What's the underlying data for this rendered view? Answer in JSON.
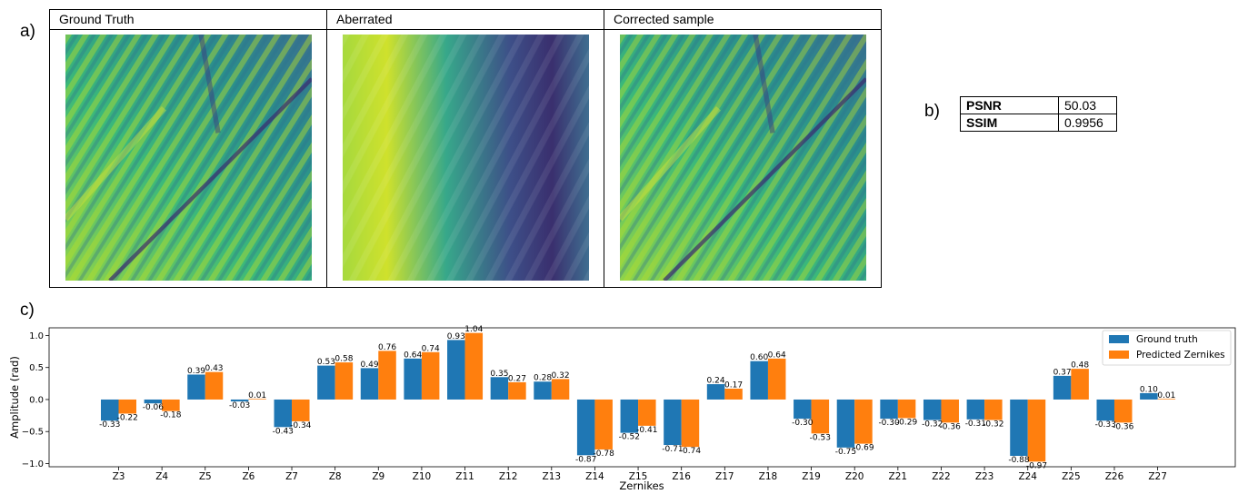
{
  "panels": {
    "a": "a)",
    "b": "b)",
    "c": "c)"
  },
  "images": [
    {
      "title": "Ground Truth"
    },
    {
      "title": "Aberrated"
    },
    {
      "title": "Corrected sample"
    }
  ],
  "metrics": [
    {
      "name": "PSNR",
      "value": "50.03"
    },
    {
      "name": "SSIM",
      "value": "0.9956"
    }
  ],
  "colors": {
    "ground_truth": "#1f77b4",
    "predicted": "#ff7f0e"
  },
  "chart_data": {
    "type": "bar",
    "xlabel": "Zernikes",
    "ylabel": "Amplitude (rad)",
    "ylim": [
      -1.05,
      1.12
    ],
    "yticks": [
      1.0,
      0.5,
      0.0,
      -0.5,
      -1.0
    ],
    "ytick_labels": [
      "1.0",
      "0.5",
      "0.0",
      "−0.5",
      "−1.0"
    ],
    "legend_position": "top-right",
    "categories": [
      "Z3",
      "Z4",
      "Z5",
      "Z6",
      "Z7",
      "Z8",
      "Z9",
      "Z10",
      "Z11",
      "Z12",
      "Z13",
      "Z14",
      "Z15",
      "Z16",
      "Z17",
      "Z18",
      "Z19",
      "Z20",
      "Z21",
      "Z22",
      "Z23",
      "Z24",
      "Z25",
      "Z26",
      "Z27"
    ],
    "series": [
      {
        "name": "Ground truth",
        "values": [
          -0.33,
          -0.06,
          0.39,
          -0.03,
          -0.43,
          0.53,
          0.49,
          0.64,
          0.93,
          0.35,
          0.28,
          -0.87,
          -0.52,
          -0.71,
          0.24,
          0.6,
          -0.3,
          -0.75,
          -0.3,
          -0.32,
          -0.31,
          -0.88,
          0.37,
          -0.33,
          0.1
        ],
        "labels": [
          "-0.33",
          "-0.06",
          "0.39",
          "-0.03",
          "-0.43",
          "0.53",
          "0.49",
          "0.64",
          "0.93",
          "0.35",
          "0.28",
          "-0.87",
          "-0.52",
          "-0.71",
          "0.24",
          "0.60",
          "-0.30",
          "-0.75",
          "-0.30",
          "-0.32",
          "-0.31",
          "-0.88",
          "0.37",
          "-0.33",
          "0.10"
        ]
      },
      {
        "name": "Predicted Zernikes",
        "values": [
          -0.22,
          -0.18,
          0.43,
          0.01,
          -0.34,
          0.58,
          0.76,
          0.74,
          1.04,
          0.27,
          0.32,
          -0.78,
          -0.41,
          -0.74,
          0.17,
          0.64,
          -0.53,
          -0.69,
          -0.29,
          -0.36,
          -0.32,
          -0.97,
          0.48,
          -0.36,
          0.01
        ],
        "labels": [
          "-0.22",
          "-0.18",
          "0.43",
          "0.01",
          "-0.34",
          "0.58",
          "0.76",
          "0.74",
          "1.04",
          "0.27",
          "0.32",
          "-0.78",
          "-0.41",
          "-0.74",
          "0.17",
          "0.64",
          "-0.53",
          "-0.69",
          "-0.29",
          "-0.36",
          "-0.32",
          "-0.97",
          "0.48",
          "-0.36",
          "0.01"
        ]
      }
    ]
  }
}
